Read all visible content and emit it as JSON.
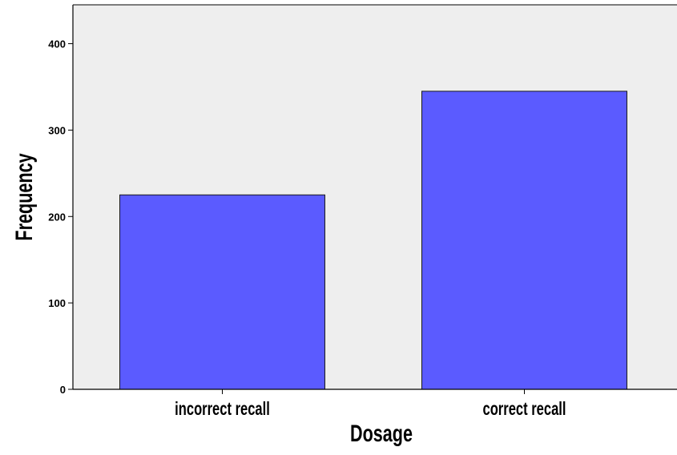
{
  "chart_data": {
    "type": "bar",
    "title": "",
    "xlabel": "Dosage",
    "ylabel": "Frequency",
    "categories": [
      "incorrect recall",
      "correct recall"
    ],
    "values": [
      225,
      345
    ],
    "ylim": [
      0,
      445
    ],
    "yticks": [
      0,
      100,
      200,
      300,
      400
    ],
    "ytick_labels": [
      "0",
      "100",
      "200",
      "300",
      "400"
    ],
    "grid": false,
    "legend": "none",
    "colors": {
      "bar_fill": "#5b5bff",
      "bar_stroke": "#1a1a1a",
      "plot_background": "#eeeeee",
      "axis": "#000000"
    }
  }
}
